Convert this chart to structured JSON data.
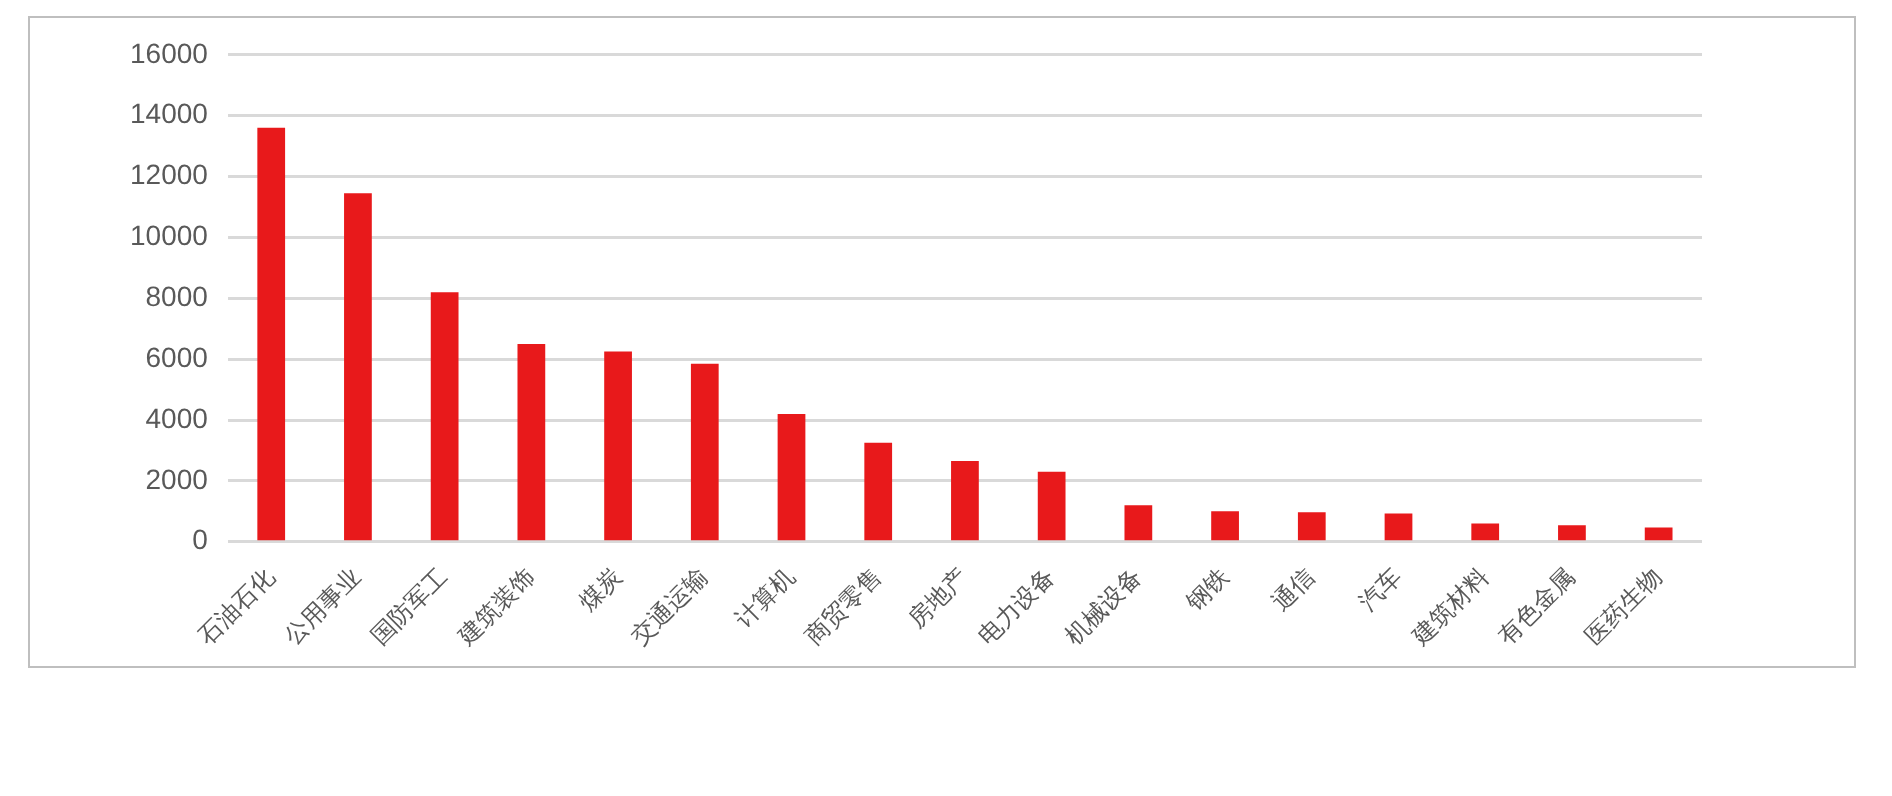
{
  "chart_data": {
    "type": "bar",
    "categories": [
      "石油石化",
      "公用事业",
      "国防军工",
      "建筑装饰",
      "煤炭",
      "交通运输",
      "计算机",
      "商贸零售",
      "房地产",
      "电力设备",
      "机械设备",
      "钢铁",
      "通信",
      "汽车",
      "建筑材料",
      "有色金属",
      "医药生物"
    ],
    "values": [
      13600,
      11450,
      8200,
      6500,
      6250,
      5850,
      4200,
      3250,
      2650,
      2300,
      1200,
      1000,
      970,
      930,
      600,
      540,
      470
    ],
    "color": "#e8191b",
    "ylim": [
      0,
      16000
    ],
    "yticks": [
      0,
      2000,
      4000,
      6000,
      8000,
      10000,
      12000,
      14000,
      16000
    ],
    "grid": "y",
    "legend": false
  }
}
